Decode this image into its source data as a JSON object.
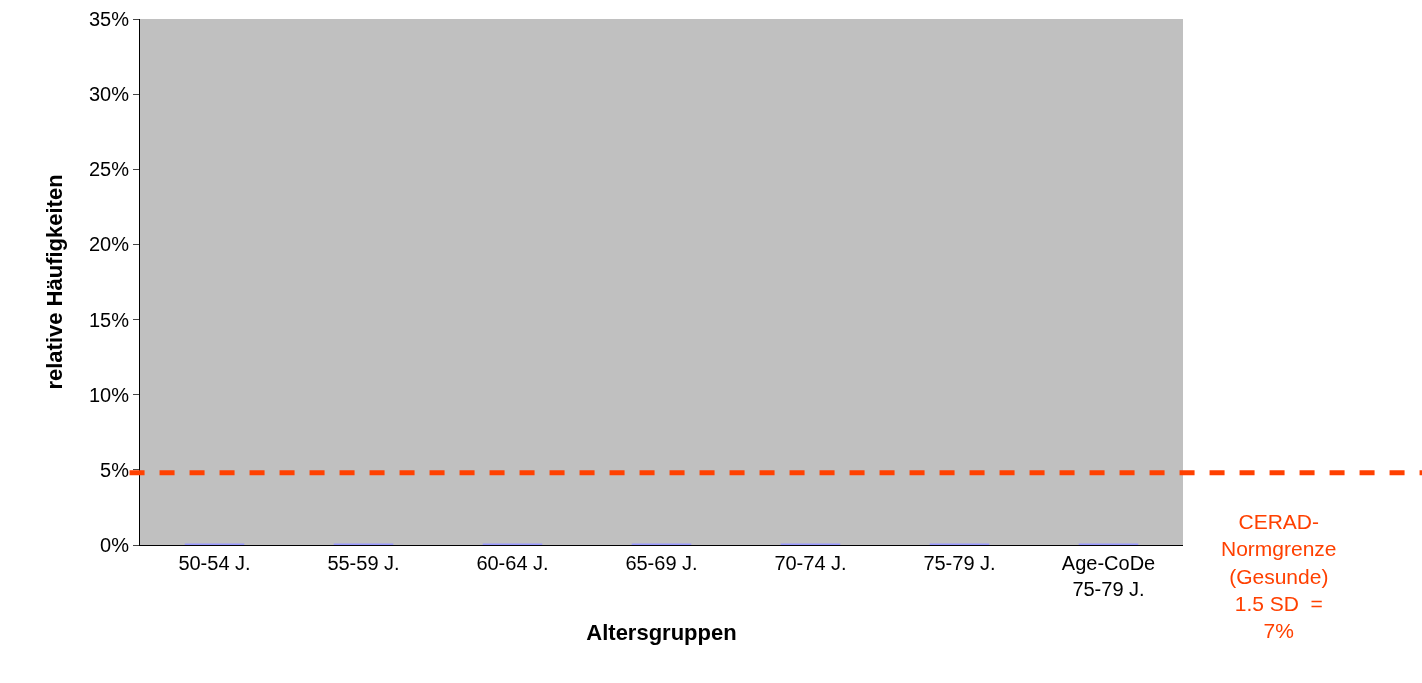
{
  "chart_data": {
    "type": "bar",
    "xlabel": "Altersgruppen",
    "ylabel": "relative Häufigkeiten",
    "categories": [
      "50-54 J.",
      "55-59 J.",
      "60-64 J.",
      "65-69 J.",
      "70-74 J.",
      "75-79 J.",
      "Age-CoDe\n75-79 J."
    ],
    "values": [
      0,
      0,
      0,
      0,
      0,
      0,
      0
    ],
    "color": "#9999ff",
    "ylim": [
      0,
      35
    ],
    "yticks": [
      {
        "value": 0,
        "label": "0%"
      },
      {
        "value": 5,
        "label": "5%"
      },
      {
        "value": 10,
        "label": "10%"
      },
      {
        "value": 15,
        "label": "15%"
      },
      {
        "value": 20,
        "label": "20%"
      },
      {
        "value": 25,
        "label": "25%"
      },
      {
        "value": 30,
        "label": "30%"
      },
      {
        "value": 35,
        "label": "35%"
      }
    ],
    "ref_lines": [
      {
        "axis": "y",
        "value": 4.8,
        "color": "#ff4000",
        "line_style": "dashed"
      }
    ],
    "annotations": [
      "CERAD-\nNormgrenze\n(Gesunde)\n1.5 SD  =\n7%"
    ],
    "grid": false,
    "legend": false
  }
}
